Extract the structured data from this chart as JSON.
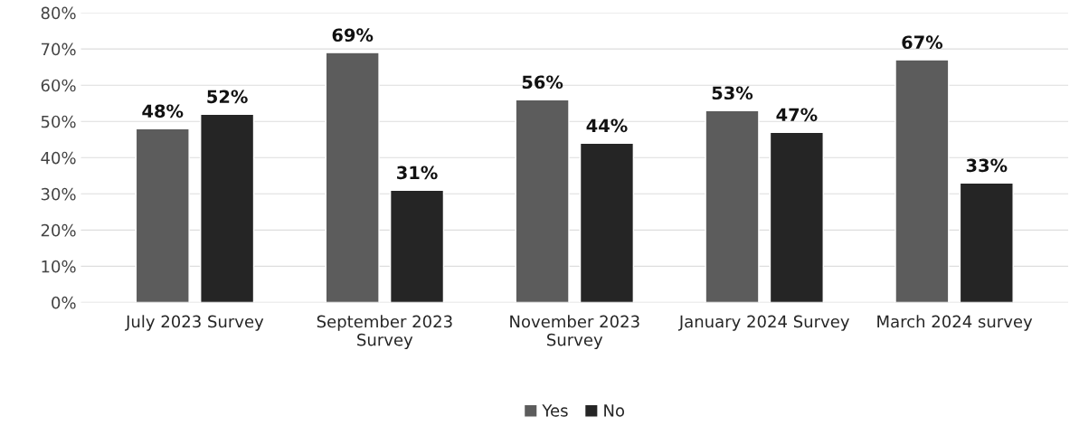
{
  "chart_data": {
    "type": "bar",
    "categories": [
      "July 2023 Survey",
      "September 2023\nSurvey",
      "November 2023\nSurvey",
      "January 2024 Survey",
      "March 2024 survey"
    ],
    "series": [
      {
        "name": "Yes",
        "color": "#5c5c5c",
        "values": [
          48,
          69,
          56,
          53,
          67
        ],
        "value_labels": [
          "48%",
          "69%",
          "56%",
          "53%",
          "67%"
        ]
      },
      {
        "name": "No",
        "color": "#252525",
        "values": [
          52,
          31,
          44,
          47,
          33
        ],
        "value_labels": [
          "52%",
          "31%",
          "44%",
          "47%",
          "33%"
        ]
      }
    ],
    "ylim": [
      0,
      80
    ],
    "yticks": [
      {
        "value": 0,
        "label": "0%"
      },
      {
        "value": 10,
        "label": "10%"
      },
      {
        "value": 20,
        "label": "20%"
      },
      {
        "value": 30,
        "label": "30%"
      },
      {
        "value": 40,
        "label": "40%"
      },
      {
        "value": 50,
        "label": "50%"
      },
      {
        "value": 60,
        "label": "60%"
      },
      {
        "value": 70,
        "label": "70%"
      },
      {
        "value": 80,
        "label": "80%"
      }
    ],
    "grid": "y",
    "legend": "bottom"
  }
}
